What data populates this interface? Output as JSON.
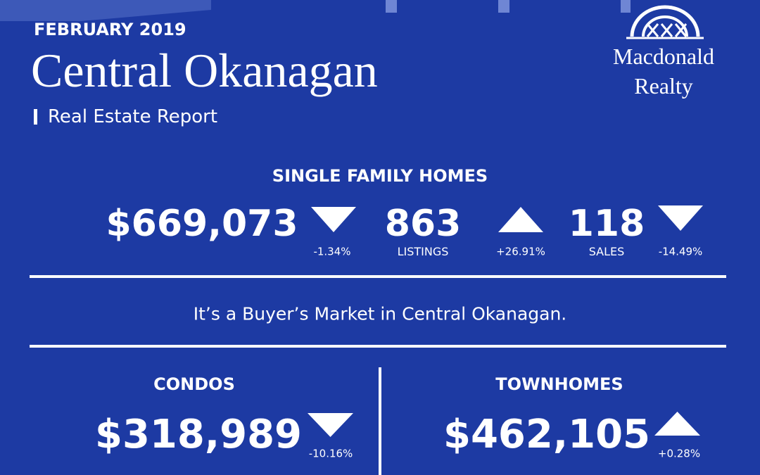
{
  "header": {
    "date": "FEBRUARY 2019",
    "title": "Central Okanagan",
    "subtitle": "Real Estate Report"
  },
  "logo": {
    "line1": "Macdonald",
    "line2": "Realty"
  },
  "single_family": {
    "heading": "SINGLE FAMILY HOMES",
    "price": "$669,073",
    "price_change": "-1.34%",
    "listings": "863",
    "listings_label": "LISTINGS",
    "listings_change": "+26.91%",
    "sales": "118",
    "sales_label": "SALES",
    "sales_change": "-14.49%"
  },
  "market_note": "It’s a Buyer’s Market in Central Okanagan.",
  "condos": {
    "heading": "CONDOS",
    "price": "$318,989",
    "price_change": "-10.16%"
  },
  "townhomes": {
    "heading": "TOWNHOMES",
    "price": "$462,105",
    "price_change": "+0.28%"
  }
}
